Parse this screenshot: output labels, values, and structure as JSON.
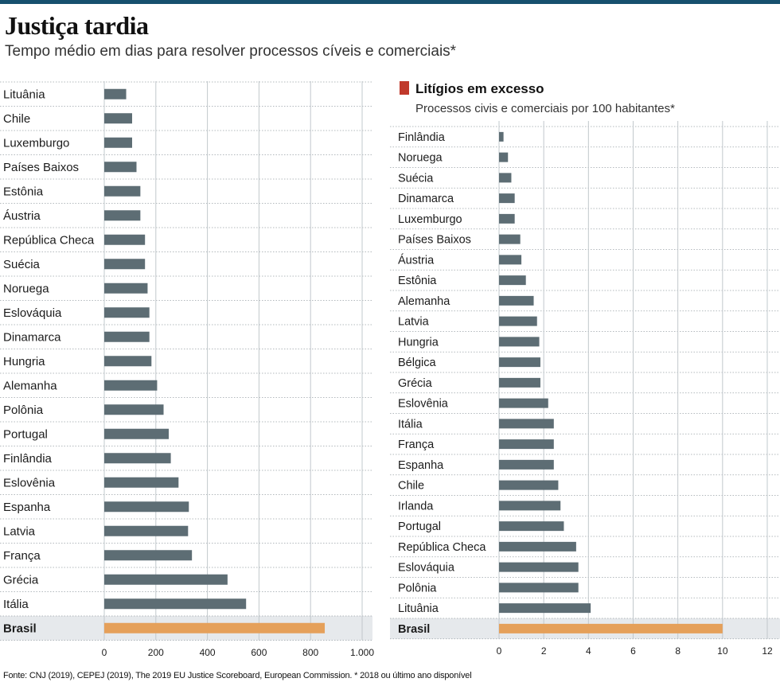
{
  "header": {
    "title": "Justiça tardia",
    "subtitle": "Tempo médio em dias para resolver processos cíveis e comerciais*"
  },
  "colors": {
    "bar": "#5d6d74",
    "highlight": "#e5a05a",
    "highlight_band": "#e6e9ec",
    "accent": "#c0392b",
    "top_rule": "#16506e"
  },
  "chart_data": [
    {
      "type": "bar",
      "orientation": "horizontal",
      "title": "",
      "categories": [
        "Lituânia",
        "Chile",
        "Luxemburgo",
        "Países Baixos",
        "Estônia",
        "Áustria",
        "República Checa",
        "Suécia",
        "Noruega",
        "Eslováquia",
        "Dinamarca",
        "Hungria",
        "Alemanha",
        "Polônia",
        "Portugal",
        "Finlândia",
        "Eslovênia",
        "Espanha",
        "Latvia",
        "França",
        "Grécia",
        "Itália",
        "Brasil"
      ],
      "values": [
        85,
        108,
        108,
        125,
        140,
        140,
        158,
        158,
        168,
        175,
        175,
        183,
        205,
        230,
        250,
        258,
        288,
        328,
        325,
        340,
        478,
        550,
        855
      ],
      "highlight": "Brasil",
      "xlim": [
        0,
        1000
      ],
      "xticks": [
        0,
        200,
        400,
        600,
        800,
        1000
      ],
      "xtick_labels": [
        "0",
        "200",
        "400",
        "600",
        "800",
        "1.000"
      ],
      "grid": true
    },
    {
      "type": "bar",
      "orientation": "horizontal",
      "title": "Litígios em excesso",
      "subtitle": "Processos civis e comerciais por 100 habitantes*",
      "categories": [
        "Finlândia",
        "Noruega",
        "Suécia",
        "Dinamarca",
        "Luxemburgo",
        "Países Baixos",
        "Áustria",
        "Estônia",
        "Alemanha",
        "Latvia",
        "Hungria",
        "Bélgica",
        "Grécia",
        "Eslovênia",
        "Itália",
        "França",
        "Espanha",
        "Chile",
        "Irlanda",
        "Portugal",
        "República Checa",
        "Eslováquia",
        "Polônia",
        "Lituânia",
        "Brasil"
      ],
      "values": [
        0.2,
        0.4,
        0.55,
        0.7,
        0.7,
        0.95,
        1.0,
        1.2,
        1.55,
        1.7,
        1.8,
        1.85,
        1.85,
        2.2,
        2.45,
        2.45,
        2.45,
        2.65,
        2.75,
        2.9,
        3.45,
        3.55,
        3.55,
        4.1,
        10.0
      ],
      "highlight": "Brasil",
      "xlim": [
        0,
        12
      ],
      "xticks": [
        0,
        2,
        4,
        6,
        8,
        10,
        12
      ],
      "xtick_labels": [
        "0",
        "2",
        "4",
        "6",
        "8",
        "10",
        "12"
      ],
      "grid": true
    }
  ],
  "footer": {
    "source": "Fonte: CNJ (2019), CEPEJ (2019), The 2019 EU Justice Scoreboard, European Commission. * 2018 ou último ano disponível"
  }
}
